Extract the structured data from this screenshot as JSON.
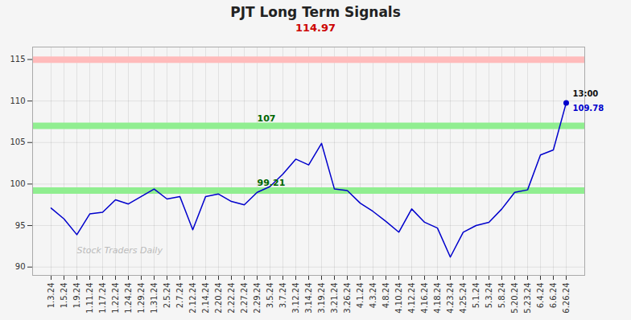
{
  "chart_data": {
    "type": "line",
    "title": "PJT Long Term Signals",
    "subtitle": "114.97",
    "subtitle_color": "#cc0000",
    "background": "#f5f5f5",
    "color": "#0000cc",
    "categories": [
      "1.3.24",
      "1.5.24",
      "1.9.24",
      "1.11.24",
      "1.17.24",
      "1.22.24",
      "1.24.24",
      "1.29.24",
      "1.31.24",
      "2.5.24",
      "2.7.24",
      "2.12.24",
      "2.14.24",
      "2.20.24",
      "2.22.24",
      "2.27.24",
      "2.29.24",
      "3.5.24",
      "3.7.24",
      "3.12.24",
      "3.14.24",
      "3.19.24",
      "3.21.24",
      "3.26.24",
      "4.1.24",
      "4.3.24",
      "4.8.24",
      "4.10.24",
      "4.12.24",
      "4.16.24",
      "4.18.24",
      "4.23.24",
      "4.25.24",
      "5.1.24",
      "5.3.24",
      "5.8.24",
      "5.20.24",
      "5.23.24",
      "6.4.24",
      "6.6.24",
      "6.26.24"
    ],
    "values": [
      97.1,
      95.8,
      93.9,
      96.4,
      96.6,
      98.1,
      97.6,
      98.5,
      99.4,
      98.2,
      98.5,
      94.5,
      98.5,
      98.8,
      97.9,
      97.5,
      99.0,
      99.7,
      101.2,
      103.0,
      102.3,
      104.9,
      99.4,
      99.21,
      97.7,
      96.7,
      95.5,
      94.2,
      97.0,
      95.4,
      94.7,
      91.2,
      94.2,
      95.0,
      95.4,
      97.0,
      99.0,
      99.3,
      103.5,
      104.1,
      109.78
    ],
    "ylim": [
      89.0,
      116.5
    ],
    "yticks": [
      90,
      95,
      100,
      105,
      110,
      115
    ],
    "grid": true,
    "reference_lines": [
      {
        "value": 114.97,
        "color": "#ffbbbb"
      },
      {
        "value": 107.0,
        "color": "#90ee90",
        "label": "107",
        "label_color": "#006600"
      },
      {
        "value": 99.21,
        "color": "#90ee90",
        "label": "99.21",
        "label_color": "#006600"
      }
    ],
    "end_labels": [
      {
        "text": "13:00",
        "color": "#111111"
      },
      {
        "text": "109.78",
        "color": "#0000cc"
      }
    ],
    "watermark": "Stock Traders Daily"
  }
}
